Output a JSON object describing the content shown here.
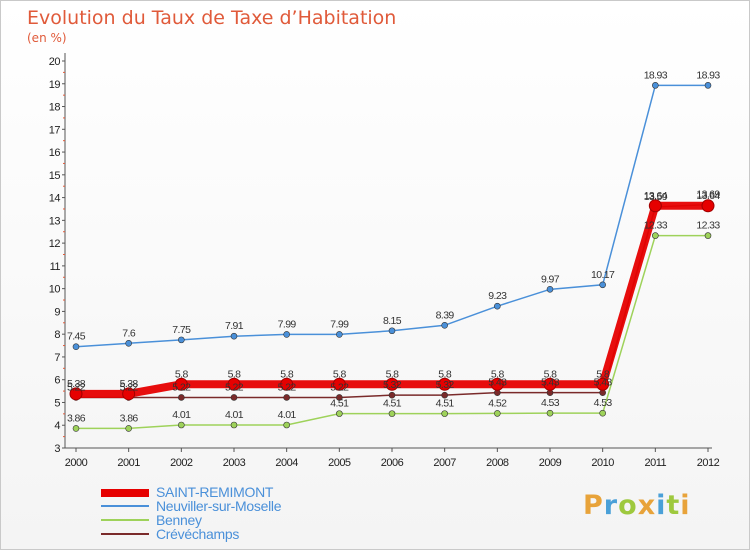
{
  "header": {
    "title": "Evolution du Taux de Taxe d’Habitation",
    "subtitle": "(en %)"
  },
  "brand": {
    "name": "Proxiti",
    "letters": [
      "P",
      "r",
      "o",
      "x",
      "i",
      "t",
      "i"
    ],
    "colors": [
      "#e8a33a",
      "#4aa0d8",
      "#9ec93e",
      "#e8a33a",
      "#4aa0d8",
      "#9ec93e",
      "#e8a33a"
    ]
  },
  "chart_data": {
    "type": "line",
    "title": "Evolution du Taux de Taxe d’Habitation",
    "subtitle": "(en %)",
    "xlabel": "",
    "ylabel": "",
    "x": [
      "2000",
      "2001",
      "2002",
      "2003",
      "2004",
      "2005",
      "2006",
      "2007",
      "2008",
      "2009",
      "2010",
      "2011",
      "2012"
    ],
    "ylim": [
      3,
      20
    ],
    "yticks": [
      3,
      4,
      5,
      6,
      7,
      8,
      9,
      10,
      11,
      12,
      13,
      14,
      15,
      16,
      17,
      18,
      19,
      20
    ],
    "grid": false,
    "legend": "bottom-left",
    "series": [
      {
        "name": "Crévéchamps",
        "color": "#7a2a2a",
        "values": [
          5.22,
          5.22,
          5.22,
          5.22,
          5.22,
          5.22,
          5.32,
          5.32,
          5.43,
          5.43,
          5.43,
          13.59,
          13.69
        ],
        "labels": [
          "5.22",
          "5.22",
          "5.22",
          "5.22",
          "5.22",
          "5.22",
          "5.32",
          "5.32",
          "5.43",
          "5.43",
          "5.43",
          "13.59",
          "13.69"
        ]
      },
      {
        "name": "Benney",
        "color": "#9ed25a",
        "values": [
          3.86,
          3.86,
          4.01,
          4.01,
          4.01,
          4.51,
          4.51,
          4.51,
          4.52,
          4.53,
          4.53,
          12.33,
          12.33
        ],
        "labels": [
          "3.86",
          "3.86",
          "4.01",
          "4.01",
          "4.01",
          "4.51",
          "4.51",
          "4.51",
          "4.52",
          "4.53",
          "4.53",
          "12.33",
          "12.33"
        ]
      },
      {
        "name": "Neuviller-sur-Moselle",
        "color": "#4a90d9",
        "values": [
          7.45,
          7.6,
          7.75,
          7.91,
          7.99,
          7.99,
          8.15,
          8.39,
          9.23,
          9.97,
          10.17,
          18.93,
          18.93
        ],
        "labels": [
          "7.45",
          "7.6",
          "7.75",
          "7.91",
          "7.99",
          "7.99",
          "8.15",
          "8.39",
          "9.23",
          "9.97",
          "10.17",
          "18.93",
          "18.93"
        ]
      },
      {
        "name": "SAINT-REMIMONT",
        "color": "#e60000",
        "values": [
          5.38,
          5.38,
          5.8,
          5.8,
          5.8,
          5.8,
          5.8,
          5.8,
          5.8,
          5.8,
          5.8,
          13.64,
          13.64
        ],
        "labels": [
          "5.38",
          "5.38",
          "5.8",
          "5.8",
          "5.8",
          "5.8",
          "5.8",
          "5.8",
          "5.8",
          "5.8",
          "5.8",
          "13.64",
          "13.64"
        ]
      }
    ],
    "legend_entries": [
      {
        "name": "SAINT-REMIMONT",
        "color": "#e60000"
      },
      {
        "name": "Neuviller-sur-Moselle",
        "color": "#4a90d9"
      },
      {
        "name": "Benney",
        "color": "#9ed25a"
      },
      {
        "name": "Crévéchamps",
        "color": "#7a2a2a"
      }
    ]
  }
}
